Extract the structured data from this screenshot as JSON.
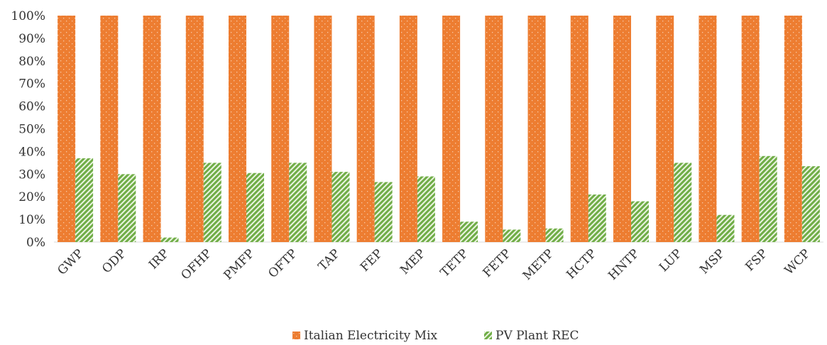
{
  "chart_data": {
    "type": "bar",
    "categories": [
      "GWP",
      "ODP",
      "IRP",
      "OFHP",
      "PMFP",
      "OFTP",
      "TAP",
      "FEP",
      "MEP",
      "TETP",
      "FETP",
      "METP",
      "HCTP",
      "HNTP",
      "LUP",
      "MSP",
      "FSP",
      "WCP"
    ],
    "series": [
      {
        "name": "Italian Electricity Mix",
        "color": "#ED7D31",
        "pattern": "dotted",
        "values": [
          100,
          100,
          100,
          100,
          100,
          100,
          100,
          100,
          100,
          100,
          100,
          100,
          100,
          100,
          100,
          100,
          100,
          100
        ]
      },
      {
        "name": "PV Plant REC",
        "color": "#70AD47",
        "pattern": "diagonal-stripes",
        "values": [
          37,
          30,
          2,
          35,
          30.5,
          35,
          31,
          26.5,
          29,
          9,
          5.5,
          6,
          21,
          18,
          35,
          12,
          38,
          33.5
        ]
      }
    ],
    "yticks": [
      "0%",
      "10%",
      "20%",
      "30%",
      "40%",
      "50%",
      "60%",
      "70%",
      "80%",
      "90%",
      "100%"
    ],
    "ylim": [
      0,
      100
    ],
    "xlabel": "",
    "ylabel": "",
    "title": "",
    "grid": false,
    "legend_position": "bottom"
  }
}
